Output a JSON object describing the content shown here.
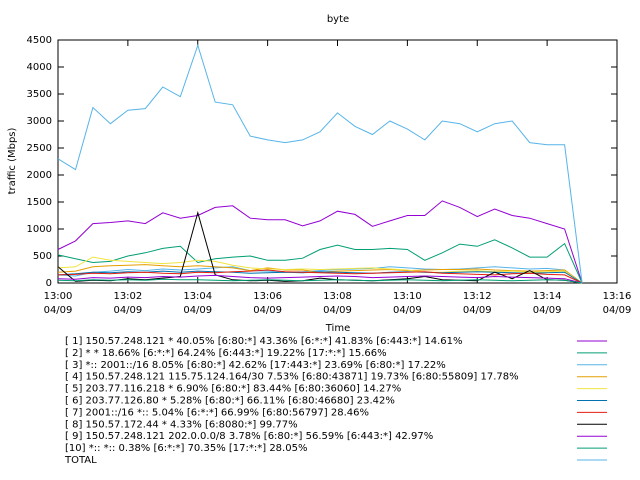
{
  "chart_data": {
    "type": "line",
    "title": "byte",
    "x_label": "Time",
    "y_label": "traffic (Mbps)",
    "x": [
      "13:00:00",
      "13:00:30",
      "13:01:00",
      "13:01:30",
      "13:02:00",
      "13:02:30",
      "13:03:00",
      "13:03:30",
      "13:04:00",
      "13:04:30",
      "13:05:00",
      "13:05:30",
      "13:06:00",
      "13:06:30",
      "13:07:00",
      "13:07:30",
      "13:08:00",
      "13:08:30",
      "13:09:00",
      "13:09:30",
      "13:10:00",
      "13:10:30",
      "13:11:00",
      "13:11:30",
      "13:12:00",
      "13:12:30",
      "13:13:00",
      "13:13:30",
      "13:14:00",
      "13:14:30",
      "13:15:00"
    ],
    "xlim": [
      "13:00",
      "13:16"
    ],
    "xticks": [
      "13:00",
      "13:02",
      "13:04",
      "13:06",
      "13:08",
      "13:10",
      "13:12",
      "13:14",
      "13:16"
    ],
    "xtick_dates": [
      "04/09",
      "04/09",
      "04/09",
      "04/09",
      "04/09",
      "04/09",
      "04/09",
      "04/09",
      "04/09"
    ],
    "ylim": [
      0,
      4500
    ],
    "yticks": [
      0,
      500,
      1000,
      1500,
      2000,
      2500,
      3000,
      3500,
      4000,
      4500
    ],
    "series": [
      {
        "name": "[ 1] 150.57.248.121 * 40.05%  [6:80:*] 43.36% [6:*:*] 41.83% [6:443:*] 14.61%",
        "color": "#9400d3",
        "values": [
          620,
          780,
          1100,
          1120,
          1150,
          1100,
          1300,
          1200,
          1250,
          1400,
          1430,
          1200,
          1170,
          1170,
          1060,
          1150,
          1330,
          1270,
          1050,
          1150,
          1250,
          1250,
          1520,
          1400,
          1230,
          1370,
          1250,
          1200,
          1100,
          1000,
          0
        ]
      },
      {
        "name": "[ 2] * * 18.66%  [6:*:*] 64.24% [6:443:*] 19.22% [17:*:*] 15.66%",
        "color": "#009e73",
        "values": [
          520,
          450,
          380,
          400,
          500,
          560,
          640,
          680,
          380,
          450,
          480,
          500,
          420,
          420,
          460,
          620,
          700,
          620,
          620,
          640,
          620,
          420,
          560,
          720,
          680,
          800,
          650,
          480,
          480,
          730,
          0
        ]
      },
      {
        "name": "[ 3] *:: 2001::/16 8.05%  [6:80:*] 42.62% [17:443:*] 23.69% [6:80:*] 17.22%",
        "color": "#56b4e9",
        "values": [
          150,
          130,
          200,
          220,
          250,
          230,
          260,
          240,
          260,
          280,
          300,
          230,
          220,
          200,
          210,
          230,
          250,
          260,
          270,
          300,
          280,
          260,
          250,
          260,
          280,
          300,
          280,
          260,
          270,
          240,
          0
        ]
      },
      {
        "name": "[ 4] 150.57.248.121 115.75.124.164/30 7.53%  [6:80:43871] 19.73% [6:80:55809] 17.78%",
        "color": "#e69f00",
        "values": [
          200,
          220,
          300,
          320,
          330,
          340,
          320,
          300,
          320,
          300,
          280,
          230,
          280,
          240,
          240,
          200,
          220,
          230,
          240,
          250,
          230,
          240,
          250,
          250,
          260,
          240,
          230,
          220,
          230,
          240,
          0
        ]
      },
      {
        "name": "[ 5] 203.77.116.218 * 6.90%  [6:80:*] 83.44% [6:80:36060] 14.27%",
        "color": "#f0e442",
        "values": [
          280,
          300,
          480,
          420,
          400,
          380,
          360,
          380,
          420,
          400,
          330,
          280,
          260,
          250,
          260,
          250,
          260,
          270,
          280,
          260,
          240,
          200,
          200,
          220,
          230,
          210,
          220,
          200,
          210,
          220,
          0
        ]
      },
      {
        "name": "[ 6] 203.77.126.80 * 5.28%  [6:80:*] 66.11% [6:80:46680] 23.42%",
        "color": "#0072b2",
        "values": [
          150,
          170,
          200,
          190,
          210,
          200,
          220,
          200,
          220,
          210,
          200,
          180,
          190,
          200,
          190,
          210,
          200,
          190,
          180,
          200,
          210,
          200,
          190,
          200,
          210,
          200,
          190,
          180,
          190,
          200,
          0
        ]
      },
      {
        "name": "[ 7] 2001::/16 *:: 5.04%  [6:*:*] 66.99% [6:80:56797] 28.46%",
        "color": "#e51e10",
        "values": [
          150,
          160,
          180,
          170,
          190,
          200,
          180,
          170,
          200,
          190,
          210,
          220,
          240,
          210,
          200,
          190,
          180,
          170,
          180,
          190,
          200,
          210,
          180,
          170,
          160,
          150,
          170,
          180,
          160,
          150,
          0
        ]
      },
      {
        "name": "[ 8] 150.57.172.44 * 4.33%  [6:8080:*] 99.77%",
        "color": "#000000",
        "values": [
          300,
          30,
          50,
          40,
          80,
          60,
          90,
          120,
          1300,
          150,
          60,
          40,
          50,
          30,
          40,
          90,
          60,
          50,
          40,
          60,
          80,
          120,
          60,
          50,
          40,
          200,
          80,
          230,
          60,
          50,
          0
        ]
      },
      {
        "name": "[ 9] 150.57.248.121 202.0.0.0/8 3.78%  [6:80:*] 56.59% [6:443:*] 42.97%",
        "color": "#9400d3",
        "values": [
          80,
          70,
          100,
          90,
          110,
          100,
          120,
          110,
          130,
          140,
          120,
          100,
          90,
          100,
          110,
          120,
          130,
          120,
          100,
          110,
          120,
          130,
          120,
          110,
          100,
          120,
          110,
          100,
          90,
          80,
          0
        ]
      },
      {
        "name": "[10] *:: *:: 0.38%  [6:*:*] 70.35% [17:*:*] 28.05%",
        "color": "#009e73",
        "values": [
          50,
          40,
          60,
          50,
          60,
          50,
          70,
          60,
          60,
          50,
          40,
          50,
          60,
          50,
          40,
          50,
          60,
          50,
          40,
          50,
          60,
          50,
          40,
          50,
          60,
          50,
          40,
          50,
          60,
          50,
          0
        ]
      },
      {
        "name": "TOTAL",
        "color": "#56b4e9",
        "values": [
          2300,
          2100,
          3250,
          2950,
          3200,
          3230,
          3630,
          3450,
          4400,
          3350,
          3300,
          2720,
          2650,
          2600,
          2650,
          2800,
          3150,
          2900,
          2750,
          3000,
          2850,
          2650,
          3000,
          2950,
          2800,
          2950,
          3000,
          2600,
          2560,
          2560,
          0
        ]
      }
    ]
  }
}
